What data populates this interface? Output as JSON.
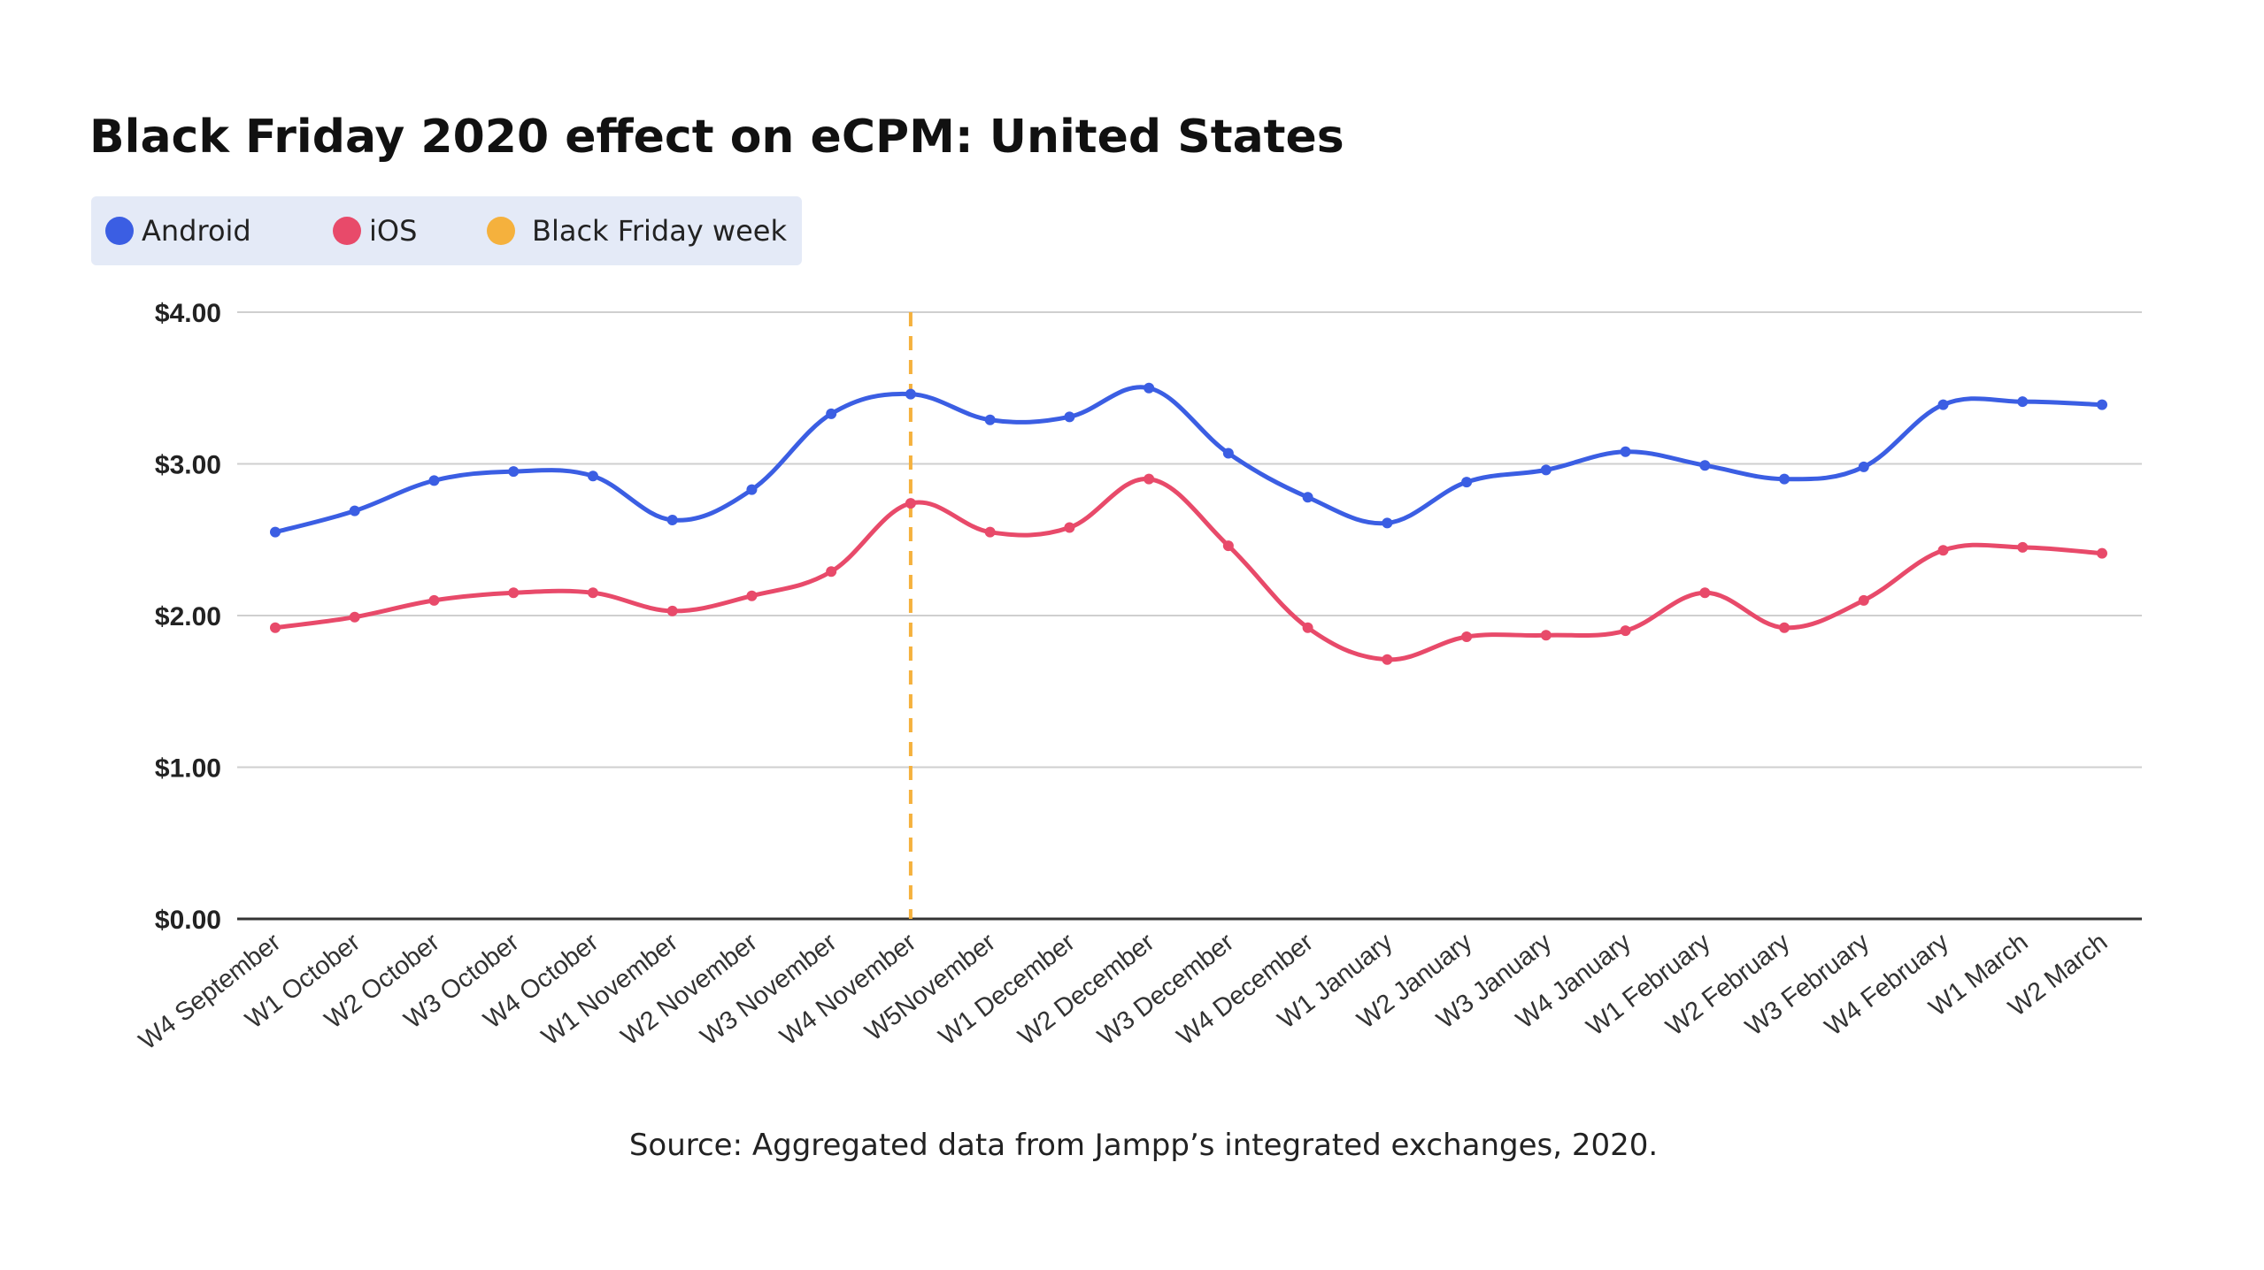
{
  "chart_data": {
    "type": "line",
    "title": "Black Friday 2020 effect on eCPM: United States",
    "source": "Source: Aggregated data from Jampp’s integrated exchanges, 2020.",
    "categories": [
      "W4 September",
      "W1 October",
      "W2 October",
      "W3 October",
      "W4 October",
      "W1 November",
      "W2 November",
      "W3 November",
      "W4 November",
      "W5November",
      "W1 December",
      "W2 December",
      "W3 December",
      "W4 December",
      "W1 January",
      "W2 January",
      "W3 January",
      "W4 January",
      "W1 February",
      "W2 February",
      "W3 February",
      "W4 February",
      "W1 March",
      "W2 March"
    ],
    "series": [
      {
        "name": "Android",
        "color": "#3b5ee3",
        "values": [
          2.55,
          2.69,
          2.89,
          2.95,
          2.92,
          2.63,
          2.83,
          3.33,
          3.46,
          3.29,
          3.31,
          3.5,
          3.07,
          2.78,
          2.61,
          2.88,
          2.96,
          3.08,
          2.99,
          2.9,
          2.98,
          3.39,
          3.41,
          3.39
        ]
      },
      {
        "name": "iOS",
        "color": "#e84a6a",
        "values": [
          1.92,
          1.99,
          2.1,
          2.15,
          2.15,
          2.03,
          2.13,
          2.29,
          2.74,
          2.55,
          2.58,
          2.9,
          2.46,
          1.92,
          1.71,
          1.86,
          1.87,
          1.9,
          2.15,
          1.92,
          2.1,
          2.43,
          2.45,
          2.41
        ]
      }
    ],
    "marker": {
      "name": "Black Friday week",
      "category": "W4 November",
      "color": "#f5b13d",
      "style": "dashed"
    },
    "yticks": [
      {
        "value": 0,
        "label": "$0.00"
      },
      {
        "value": 1,
        "label": "$1.00"
      },
      {
        "value": 2,
        "label": "$2.00"
      },
      {
        "value": 3,
        "label": "$3.00"
      },
      {
        "value": 4,
        "label": "$4.00"
      }
    ],
    "ylim": [
      0,
      4
    ],
    "xlabel": "",
    "ylabel": "",
    "grid": true,
    "legend": {
      "position": "top-left",
      "background": "#e4eaf7",
      "items": [
        {
          "label": "Android",
          "color": "#3b5ee3"
        },
        {
          "label": "iOS",
          "color": "#e84a6a"
        },
        {
          "label": "Black Friday week",
          "color": "#f5b13d"
        }
      ]
    }
  }
}
